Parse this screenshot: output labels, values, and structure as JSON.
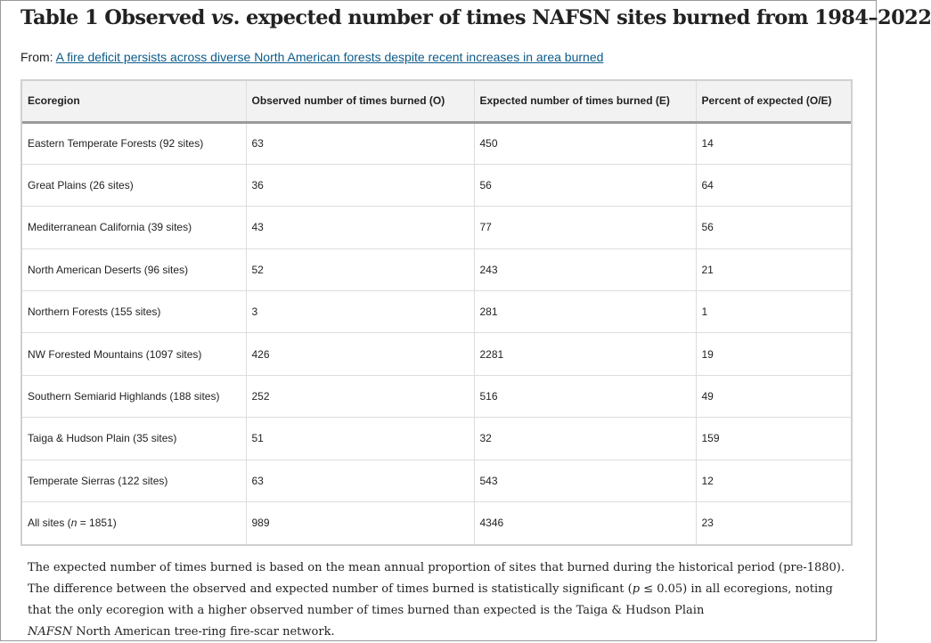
{
  "title": {
    "prefix": "Table 1 Observed ",
    "vs": "vs",
    "suffix": ". expected number of times NAFSN sites burned from 1984–2022"
  },
  "source": {
    "label": "From: ",
    "link_text": "A fire deficit persists across diverse North American forests despite recent increases in area burned"
  },
  "table": {
    "headers": [
      "Ecoregion",
      "Observed number of times burned (O)",
      "Expected number of times burned (E)",
      "Percent of expected (O/E)"
    ],
    "rows": [
      [
        "Eastern Temperate Forests (92 sites)",
        "63",
        "450",
        "14"
      ],
      [
        "Great Plains (26 sites)",
        "36",
        "56",
        "64"
      ],
      [
        "Mediterranean California (39 sites)",
        "43",
        "77",
        "56"
      ],
      [
        "North American Deserts (96 sites)",
        "52",
        "243",
        "21"
      ],
      [
        "Northern Forests (155 sites)",
        "3",
        "281",
        "1"
      ],
      [
        "NW Forested Mountains (1097 sites)",
        "426",
        "2281",
        "19"
      ],
      [
        "Southern Semiarid Highlands (188 sites)",
        "252",
        "516",
        "49"
      ],
      [
        "Taiga & Hudson Plain (35 sites)",
        "51",
        "32",
        "159"
      ],
      [
        "Temperate Sierras (122 sites)",
        "63",
        "543",
        "12"
      ]
    ],
    "last_row": {
      "label_prefix": "All sites (",
      "label_n": "n",
      "label_suffix": " = 1851)",
      "observed": "989",
      "expected": "4346",
      "percent": "23"
    }
  },
  "footnote": {
    "part1": "The expected number of times burned is based on the mean annual proportion of sites that burned during the historical period (pre-1880). The difference between the observed and expected number of times burned is statistically significant (",
    "p": "p",
    "part2": " ≤ 0.05) in all ecoregions, noting that the only ecoregion with a higher observed number of times burned than expected is the Taiga & Hudson Plain",
    "abbr": "NAFSN",
    "abbr_def": " North American tree-ring fire-scar network."
  }
}
